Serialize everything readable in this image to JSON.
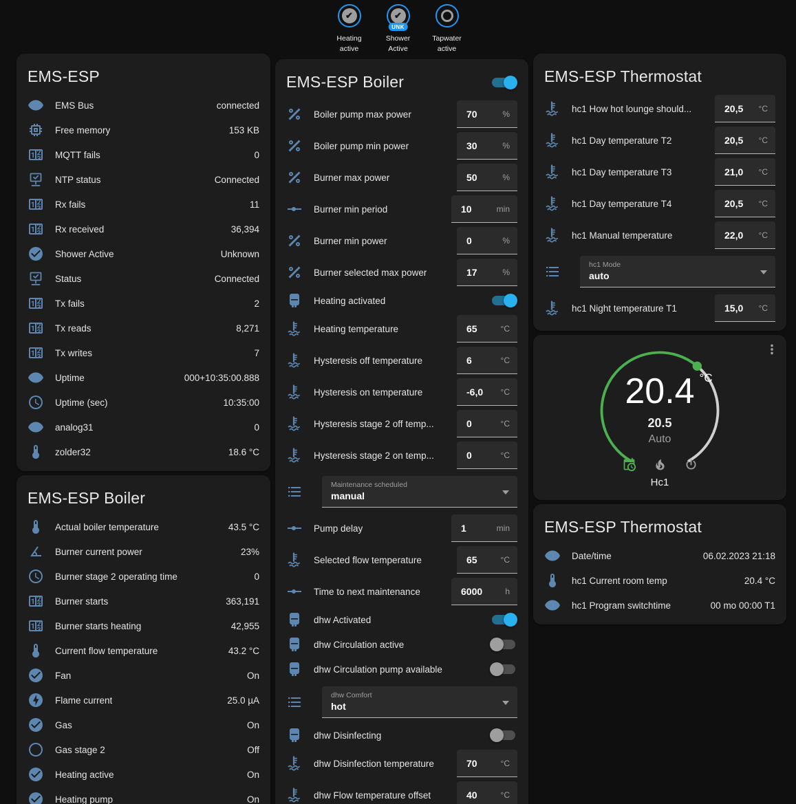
{
  "colors": {
    "icon_blue": "#5d87b0",
    "badge_ring": "#2196f3",
    "toggle_on_knob": "#29b0ef",
    "toggle_on_track": "#236f92",
    "gauge_green": "#4caf50"
  },
  "badges": [
    {
      "icon": "check",
      "line1": "Heating",
      "line2": "active",
      "tag": ""
    },
    {
      "icon": "check",
      "line1": "Shower",
      "line2": "Active",
      "tag": "UNK"
    },
    {
      "icon": "circle",
      "line1": "Tapwater",
      "line2": "active",
      "tag": ""
    }
  ],
  "layout": {
    "columns": [
      [
        "ems_status",
        "boiler_sensors"
      ],
      [
        "boiler_controls"
      ],
      [
        "thermostat_controls",
        "thermostat_gauge",
        "thermostat_sensors"
      ]
    ]
  },
  "cards": {
    "ems_status": {
      "type": "entities",
      "title": "EMS-ESP",
      "rows": [
        {
          "type": "sensor",
          "icon": "eye",
          "label": "EMS Bus",
          "value": "connected"
        },
        {
          "type": "sensor",
          "icon": "memory",
          "label": "Free memory",
          "value": "153 KB"
        },
        {
          "type": "sensor",
          "icon": "counter",
          "label": "MQTT fails",
          "value": "0"
        },
        {
          "type": "sensor",
          "icon": "network",
          "label": "NTP status",
          "value": "Connected"
        },
        {
          "type": "sensor",
          "icon": "counter",
          "label": "Rx fails",
          "value": "11"
        },
        {
          "type": "sensor",
          "icon": "counter",
          "label": "Rx received",
          "value": "36,394"
        },
        {
          "type": "sensor",
          "icon": "check-circle",
          "label": "Shower Active",
          "value": "Unknown"
        },
        {
          "type": "sensor",
          "icon": "network",
          "label": "Status",
          "value": "Connected"
        },
        {
          "type": "sensor",
          "icon": "counter",
          "label": "Tx fails",
          "value": "2"
        },
        {
          "type": "sensor",
          "icon": "counter",
          "label": "Tx reads",
          "value": "8,271"
        },
        {
          "type": "sensor",
          "icon": "counter",
          "label": "Tx writes",
          "value": "7"
        },
        {
          "type": "sensor",
          "icon": "eye",
          "label": "Uptime",
          "value": "000+10:35:00.888"
        },
        {
          "type": "sensor",
          "icon": "clock",
          "label": "Uptime (sec)",
          "value": "10:35:00"
        },
        {
          "type": "sensor",
          "icon": "eye",
          "label": "analog31",
          "value": "0"
        },
        {
          "type": "sensor",
          "icon": "thermometer",
          "label": "zolder32",
          "value": "18.6 °C"
        }
      ]
    },
    "boiler_sensors": {
      "type": "entities",
      "title": "EMS-ESP Boiler",
      "rows": [
        {
          "type": "sensor",
          "icon": "thermometer",
          "label": "Actual boiler temperature",
          "value": "43.5 °C"
        },
        {
          "type": "sensor",
          "icon": "angle",
          "label": "Burner current power",
          "value": "23%"
        },
        {
          "type": "sensor",
          "icon": "clock",
          "label": "Burner stage 2 operating time",
          "value": "0"
        },
        {
          "type": "sensor",
          "icon": "counter",
          "label": "Burner starts",
          "value": "363,191"
        },
        {
          "type": "sensor",
          "icon": "counter",
          "label": "Burner starts heating",
          "value": "42,955"
        },
        {
          "type": "sensor",
          "icon": "thermometer",
          "label": "Current flow temperature",
          "value": "43.2 °C"
        },
        {
          "type": "sensor",
          "icon": "check-circle",
          "label": "Fan",
          "value": "On"
        },
        {
          "type": "sensor",
          "icon": "flash-circle",
          "label": "Flame current",
          "value": "25.0 µA"
        },
        {
          "type": "sensor",
          "icon": "check-circle",
          "label": "Gas",
          "value": "On"
        },
        {
          "type": "sensor",
          "icon": "circle-outline",
          "label": "Gas stage 2",
          "value": "Off"
        },
        {
          "type": "sensor",
          "icon": "check-circle",
          "label": "Heating active",
          "value": "On"
        },
        {
          "type": "sensor",
          "icon": "check-circle",
          "label": "Heating pump",
          "value": "On"
        }
      ]
    },
    "boiler_controls": {
      "type": "entities",
      "title": "EMS-ESP Boiler",
      "header_toggle": true,
      "rows": [
        {
          "type": "number",
          "icon": "percent",
          "label": "Boiler pump max power",
          "value": "70",
          "unit": "%"
        },
        {
          "type": "number",
          "icon": "percent",
          "label": "Boiler pump min power",
          "value": "30",
          "unit": "%"
        },
        {
          "type": "number",
          "icon": "percent",
          "label": "Burner max power",
          "value": "50",
          "unit": "%"
        },
        {
          "type": "number",
          "icon": "ray",
          "label": "Burner min period",
          "value": "10",
          "unit": "min"
        },
        {
          "type": "number",
          "icon": "percent",
          "label": "Burner min power",
          "value": "0",
          "unit": "%"
        },
        {
          "type": "number",
          "icon": "percent",
          "label": "Burner selected max power",
          "value": "17",
          "unit": "%"
        },
        {
          "type": "toggle",
          "icon": "boiler",
          "label": "Heating activated",
          "on": true
        },
        {
          "type": "number",
          "icon": "coolant",
          "label": "Heating temperature",
          "value": "65",
          "unit": "°C"
        },
        {
          "type": "number",
          "icon": "coolant",
          "label": "Hysteresis off temperature",
          "value": "6",
          "unit": "°C"
        },
        {
          "type": "number",
          "icon": "coolant",
          "label": "Hysteresis on temperature",
          "value": "-6,0",
          "unit": "°C"
        },
        {
          "type": "number",
          "icon": "coolant",
          "label": "Hysteresis stage 2 off temp...",
          "value": "0",
          "unit": "°C"
        },
        {
          "type": "number",
          "icon": "coolant",
          "label": "Hysteresis stage 2 on temp...",
          "value": "0",
          "unit": "°C"
        },
        {
          "type": "select",
          "icon": "list",
          "label": "Maintenance scheduled",
          "value": "manual"
        },
        {
          "type": "number",
          "icon": "ray",
          "label": "Pump delay",
          "value": "1",
          "unit": "min"
        },
        {
          "type": "number",
          "icon": "coolant",
          "label": "Selected flow temperature",
          "value": "65",
          "unit": "°C"
        },
        {
          "type": "number",
          "icon": "ray",
          "label": "Time to next maintenance",
          "value": "6000",
          "unit": "h"
        },
        {
          "type": "toggle",
          "icon": "boiler",
          "label": "dhw Activated",
          "on": true
        },
        {
          "type": "toggle",
          "icon": "boiler",
          "label": "dhw Circulation active",
          "on": false
        },
        {
          "type": "toggle",
          "icon": "boiler",
          "label": "dhw Circulation pump available",
          "on": false
        },
        {
          "type": "select",
          "icon": "list",
          "label": "dhw Comfort",
          "value": "hot"
        },
        {
          "type": "toggle",
          "icon": "boiler",
          "label": "dhw Disinfecting",
          "on": false
        },
        {
          "type": "number",
          "icon": "coolant",
          "label": "dhw Disinfection temperature",
          "value": "70",
          "unit": "°C"
        },
        {
          "type": "number",
          "icon": "coolant",
          "label": "dhw Flow temperature offset",
          "value": "40",
          "unit": "°C"
        }
      ]
    },
    "thermostat_controls": {
      "type": "entities",
      "title": "EMS-ESP Thermostat",
      "rows": [
        {
          "type": "number",
          "icon": "coolant",
          "label": "hc1 How hot lounge should...",
          "value": "20,5",
          "unit": "°C"
        },
        {
          "type": "number",
          "icon": "coolant",
          "label": "hc1 Day temperature T2",
          "value": "20,5",
          "unit": "°C"
        },
        {
          "type": "number",
          "icon": "coolant",
          "label": "hc1 Day temperature T3",
          "value": "21,0",
          "unit": "°C"
        },
        {
          "type": "number",
          "icon": "coolant",
          "label": "hc1 Day temperature T4",
          "value": "20,5",
          "unit": "°C"
        },
        {
          "type": "number",
          "icon": "coolant",
          "label": "hc1 Manual temperature",
          "value": "22,0",
          "unit": "°C"
        },
        {
          "type": "select",
          "icon": "list",
          "label": "hc1 Mode",
          "value": "auto"
        },
        {
          "type": "number",
          "icon": "coolant",
          "label": "hc1 Night temperature T1",
          "value": "15,0",
          "unit": "°C"
        }
      ]
    },
    "thermostat_gauge": {
      "type": "gauge",
      "temp": "20.4",
      "temp_unit": "°C",
      "setpoint": "20.5",
      "mode": "Auto",
      "name": "Hc1",
      "icons": [
        "calendar-clock",
        "fire",
        "power"
      ],
      "active_icon": 0
    },
    "thermostat_sensors": {
      "type": "entities",
      "title": "EMS-ESP Thermostat",
      "rows": [
        {
          "type": "sensor",
          "icon": "eye",
          "label": "Date/time",
          "value": "06.02.2023 21:18"
        },
        {
          "type": "sensor",
          "icon": "thermometer",
          "label": "hc1 Current room temp",
          "value": "20.4 °C"
        },
        {
          "type": "sensor",
          "icon": "eye",
          "label": "hc1 Program switchtime",
          "value": "00 mo 00:00 T1"
        }
      ]
    }
  }
}
